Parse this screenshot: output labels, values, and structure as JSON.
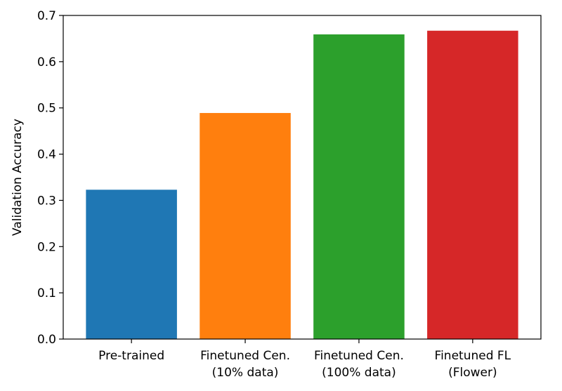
{
  "chart_data": {
    "type": "bar",
    "title": "",
    "xlabel": "",
    "ylabel": "Validation Accuracy",
    "ylim": [
      0,
      0.7
    ],
    "yticks": [
      "0.0",
      "0.1",
      "0.2",
      "0.3",
      "0.4",
      "0.5",
      "0.6",
      "0.7"
    ],
    "grid": false,
    "categories": [
      [
        "Pre-trained"
      ],
      [
        "Finetuned Cen.",
        "(10% data)"
      ],
      [
        "Finetuned Cen.",
        "(100% data)"
      ],
      [
        "Finetuned FL",
        "(Flower)"
      ]
    ],
    "values": [
      0.323,
      0.489,
      0.659,
      0.667
    ],
    "colors": [
      "#1f77b4",
      "#ff7f0e",
      "#2ca02c",
      "#d62728"
    ]
  }
}
